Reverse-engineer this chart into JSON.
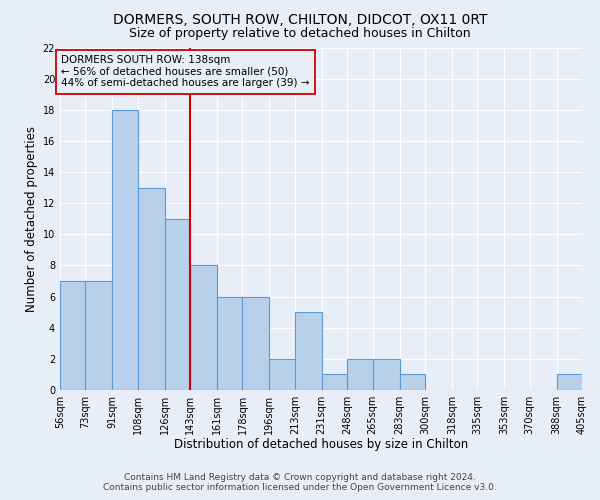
{
  "title": "DORMERS, SOUTH ROW, CHILTON, DIDCOT, OX11 0RT",
  "subtitle": "Size of property relative to detached houses in Chilton",
  "xlabel": "Distribution of detached houses by size in Chilton",
  "ylabel": "Number of detached properties",
  "bin_edges": [
    56,
    73,
    91,
    108,
    126,
    143,
    161,
    178,
    196,
    213,
    231,
    248,
    265,
    283,
    300,
    318,
    335,
    353,
    370,
    388,
    405
  ],
  "bin_labels": [
    "56sqm",
    "73sqm",
    "91sqm",
    "108sqm",
    "126sqm",
    "143sqm",
    "161sqm",
    "178sqm",
    "196sqm",
    "213sqm",
    "231sqm",
    "248sqm",
    "265sqm",
    "283sqm",
    "300sqm",
    "318sqm",
    "335sqm",
    "353sqm",
    "370sqm",
    "388sqm",
    "405sqm"
  ],
  "counts": [
    7,
    7,
    18,
    13,
    11,
    8,
    6,
    6,
    2,
    5,
    1,
    2,
    2,
    1,
    0,
    0,
    0,
    0,
    0,
    1
  ],
  "bar_color": "#b8d0ea",
  "bar_edge_color": "#5b9bd5",
  "vline_x": 143,
  "vline_color": "#cc0000",
  "annotation_title": "DORMERS SOUTH ROW: 138sqm",
  "annotation_line1": "← 56% of detached houses are smaller (50)",
  "annotation_line2": "44% of semi-detached houses are larger (39) →",
  "ylim": [
    0,
    22
  ],
  "yticks": [
    0,
    2,
    4,
    6,
    8,
    10,
    12,
    14,
    16,
    18,
    20,
    22
  ],
  "footer_line1": "Contains HM Land Registry data © Crown copyright and database right 2024.",
  "footer_line2": "Contains public sector information licensed under the Open Government Licence v3.0.",
  "bg_color": "#e8eef7",
  "grid_color": "#ffffff",
  "title_fontsize": 10,
  "subtitle_fontsize": 9,
  "label_fontsize": 8.5,
  "tick_fontsize": 7,
  "annotation_fontsize": 7.5,
  "footer_fontsize": 6.5
}
